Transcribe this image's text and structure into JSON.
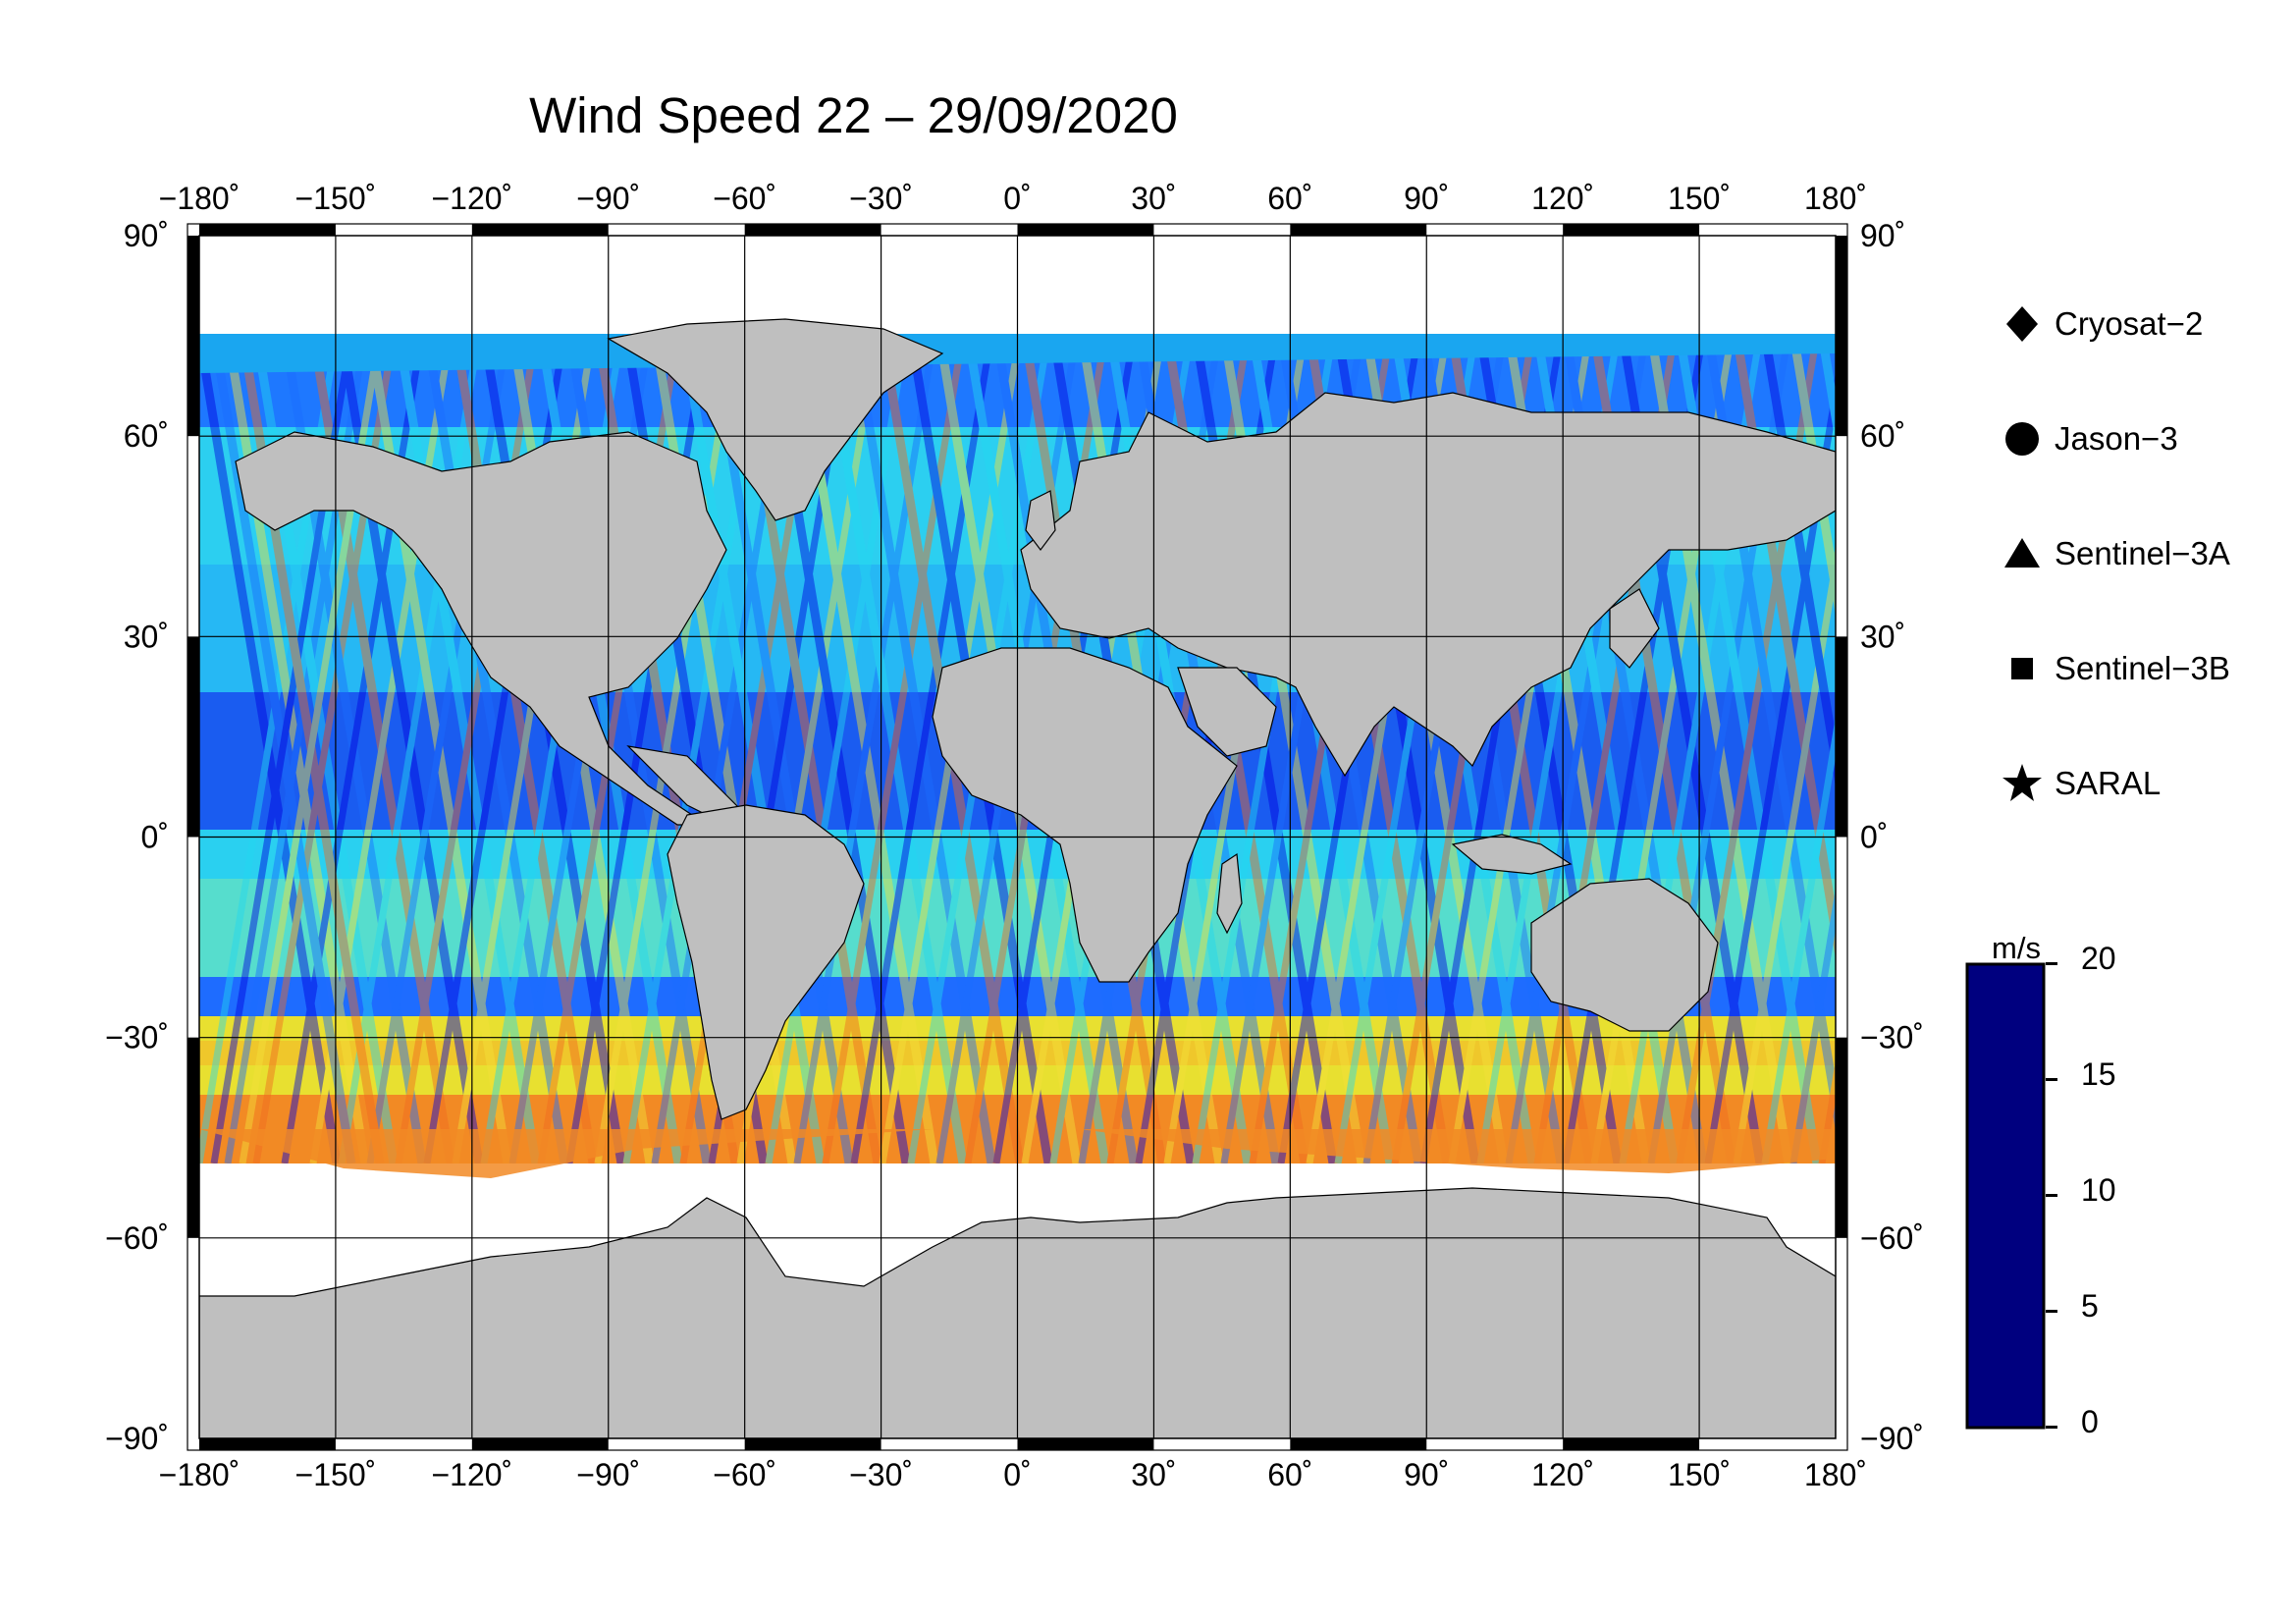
{
  "title": "Wind Speed 22 – 29/09/2020",
  "lon_ticks": [
    "−180˚",
    "−150˚",
    "−120˚",
    "−90˚",
    "−60˚",
    "−30˚",
    "0˚",
    "30˚",
    "60˚",
    "90˚",
    "120˚",
    "150˚",
    "180˚"
  ],
  "lat_ticks_left": [
    "90˚",
    "60˚",
    "30˚",
    "0˚",
    "−30˚",
    "−60˚",
    "−90˚"
  ],
  "lat_ticks_right": [
    "90˚",
    "60˚",
    "30˚",
    "0˚",
    "−30˚",
    "−60˚",
    "−90˚"
  ],
  "legend": [
    {
      "label": "Cryosat−2",
      "symbol": "diamond-icon"
    },
    {
      "label": "Jason−3",
      "symbol": "circle-icon"
    },
    {
      "label": "Sentinel−3A",
      "symbol": "triangle-icon"
    },
    {
      "label": "Sentinel−3B",
      "symbol": "square-icon"
    },
    {
      "label": "SARAL",
      "symbol": "star-icon"
    }
  ],
  "colorbar": {
    "unit": "m/s",
    "ticks": [
      "20",
      "15",
      "10",
      "5",
      "0"
    ],
    "range": [
      0,
      20
    ],
    "colors": [
      "#00007f",
      "#0000ff",
      "#007fff",
      "#00ffff",
      "#7fff7f",
      "#ffff00",
      "#ff7f00",
      "#ff0000",
      "#7f0000"
    ]
  },
  "colors": {
    "land": "#bfbfbf",
    "ice": "#ffffff",
    "frame": "#000000"
  }
}
